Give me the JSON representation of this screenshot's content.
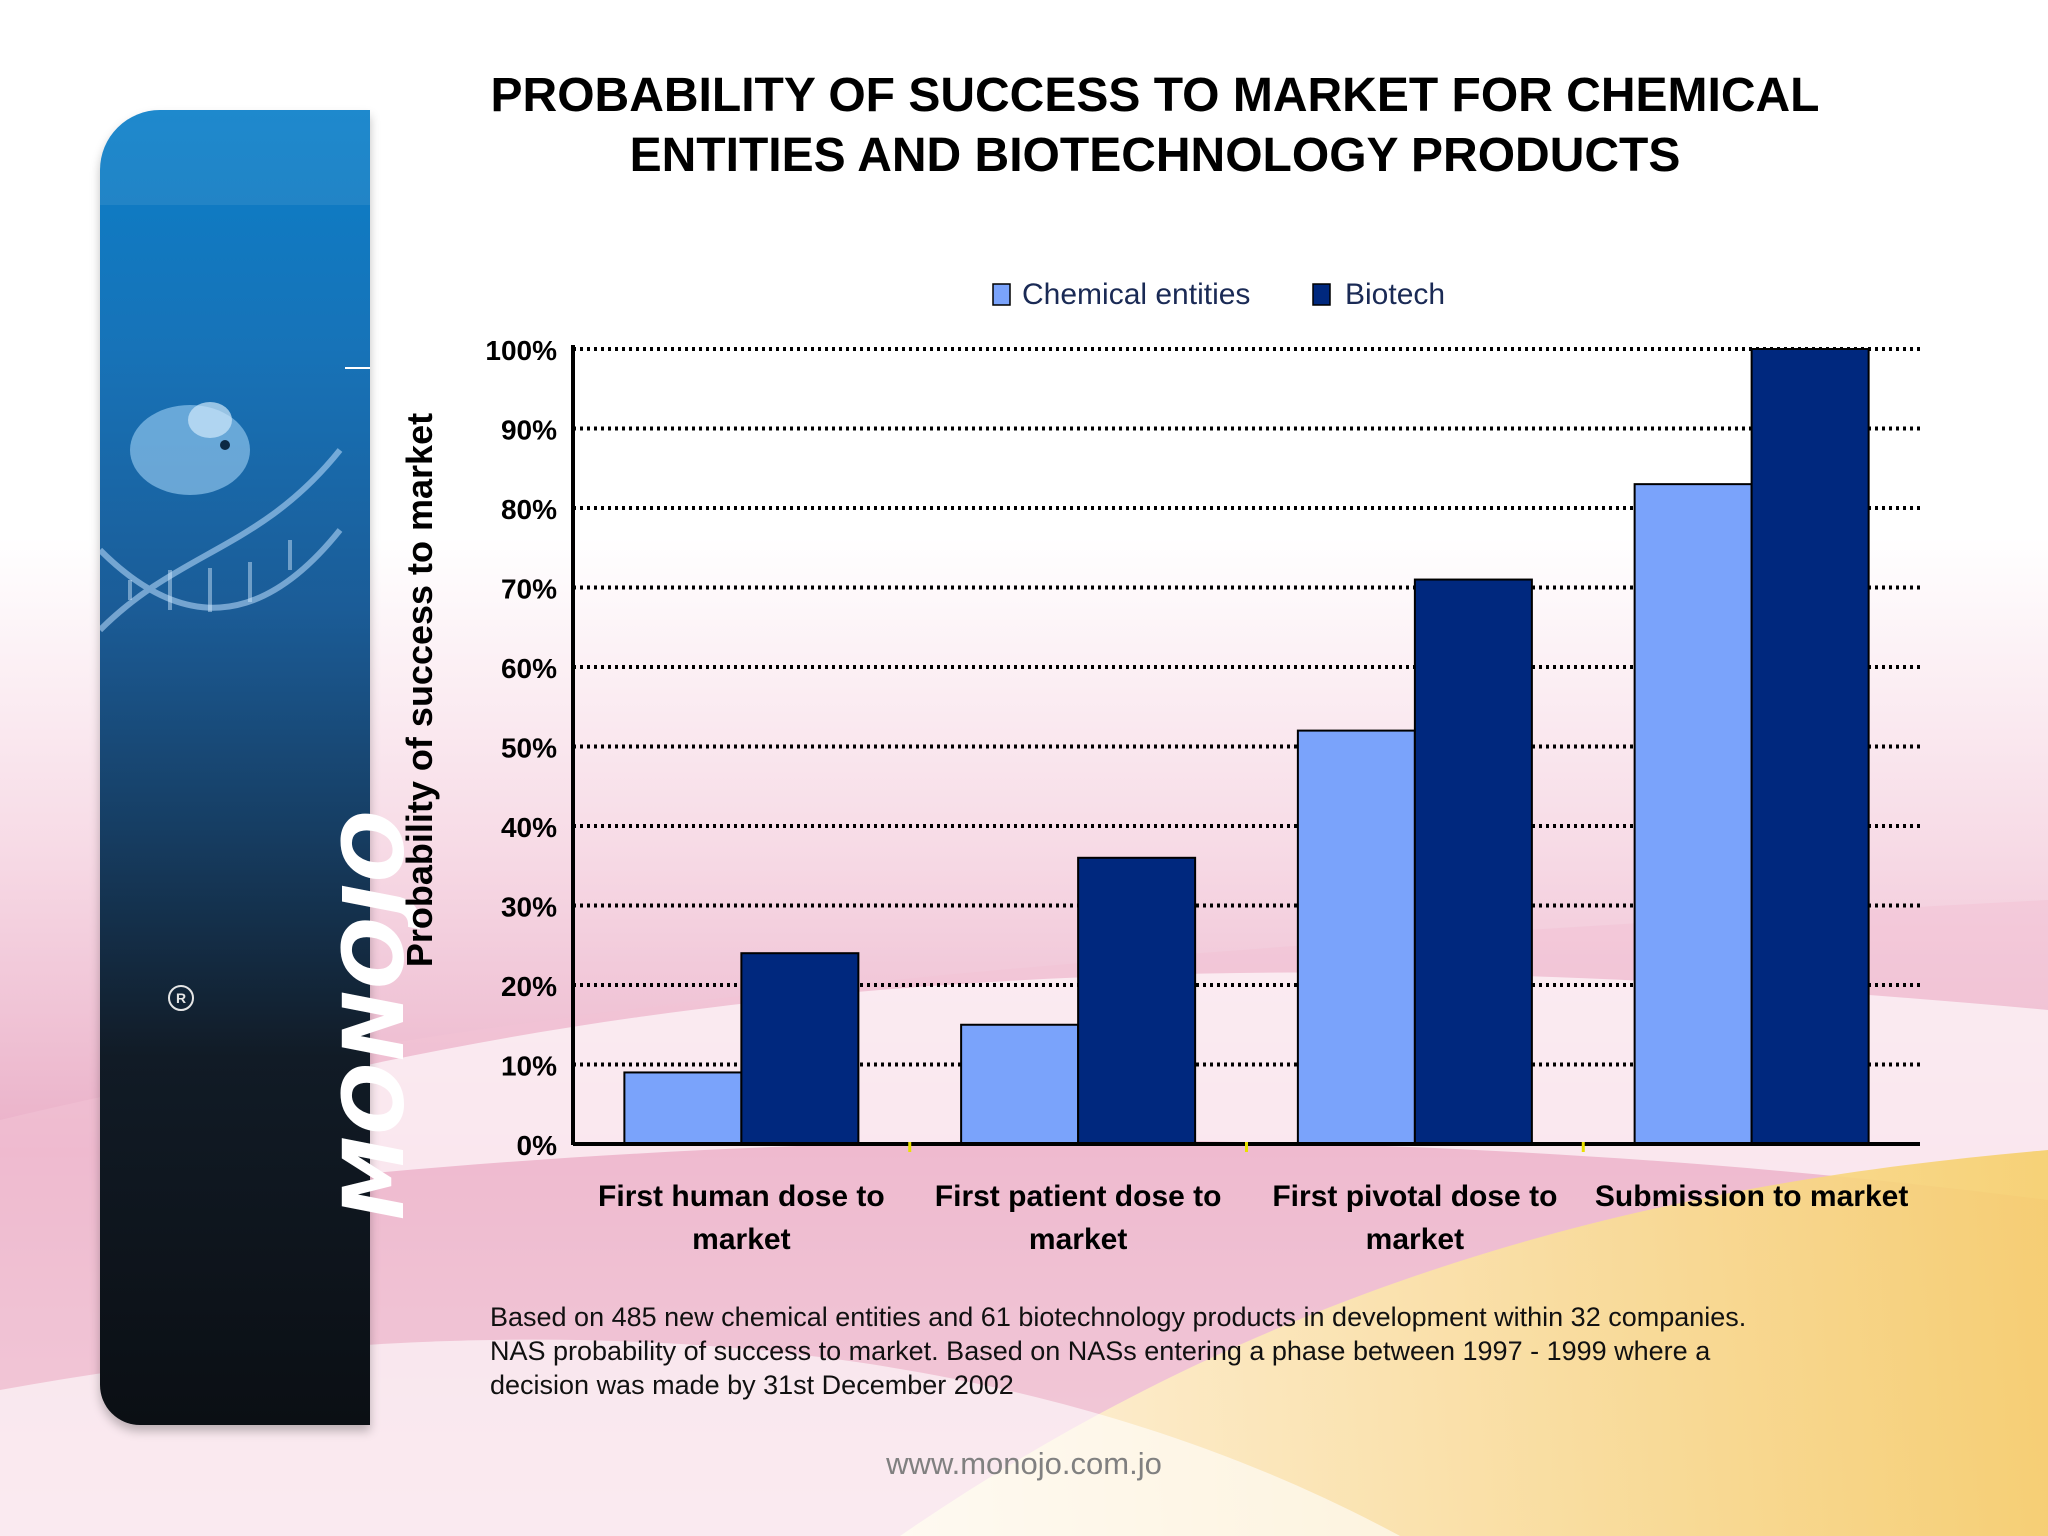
{
  "colors": {
    "chemical": "#7aa3fb",
    "biotech": "#00287e",
    "gridline": "#000000",
    "banner": "#1773b8"
  },
  "branding": {
    "logo_text": "MONOJO",
    "logo_icon": "dna-mouse-image",
    "registered_mark": "R",
    "website": "www.monojo.com.jo"
  },
  "chart_data": {
    "type": "bar",
    "title_lines": [
      "PROBABILITY OF SUCCESS TO MARKET FOR CHEMICAL",
      "ENTITIES AND BIOTECHNOLOGY PRODUCTS"
    ],
    "ylabel": "Probability of success to market",
    "xlabel": "",
    "ylim": [
      0,
      100
    ],
    "y_ticks": [
      {
        "value": 0,
        "label": "0%"
      },
      {
        "value": 10,
        "label": "10%"
      },
      {
        "value": 20,
        "label": "20%"
      },
      {
        "value": 30,
        "label": "30%"
      },
      {
        "value": 40,
        "label": "40%"
      },
      {
        "value": 50,
        "label": "50%"
      },
      {
        "value": 60,
        "label": "60%"
      },
      {
        "value": 70,
        "label": "70%"
      },
      {
        "value": 80,
        "label": "80%"
      },
      {
        "value": 90,
        "label": "90%"
      },
      {
        "value": 100,
        "label": "100%"
      }
    ],
    "grid": true,
    "legend_position": "top-center",
    "categories": [
      [
        "First human dose to",
        "market"
      ],
      [
        "First patient dose to",
        "market"
      ],
      [
        "First pivotal dose to",
        "market"
      ],
      [
        "Submission to market"
      ]
    ],
    "series": [
      {
        "name": "Chemical entities",
        "color": "#7aa3fb",
        "values": [
          9,
          15,
          52,
          83
        ]
      },
      {
        "name": "Biotech",
        "color": "#00287e",
        "values": [
          24,
          36,
          71,
          100
        ]
      }
    ]
  },
  "footnote": [
    "Based on 485 new chemical entities and 61 biotechnology products in development within 32 companies.",
    "NAS probability of success to market.  Based on NASs entering a phase between 1997 - 1999 where a",
    "decision was made by 31st December 2002"
  ]
}
